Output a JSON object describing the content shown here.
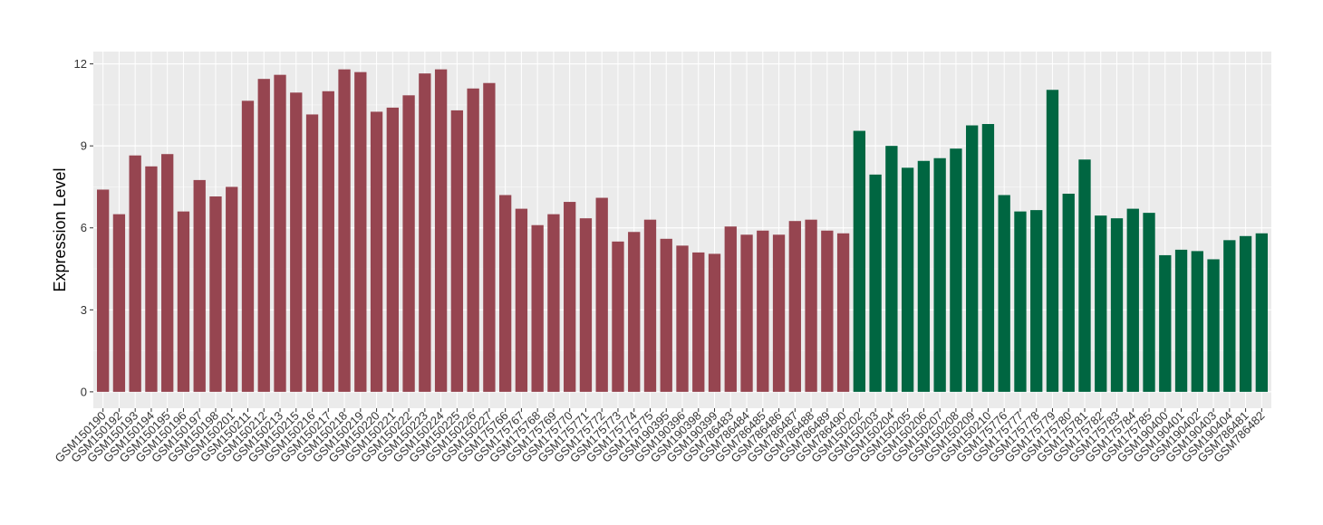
{
  "chart_data": {
    "type": "bar",
    "title": "",
    "xlabel": "",
    "ylabel": "Expression Level",
    "ylim": [
      -0.6,
      12.45
    ],
    "yticks": [
      0,
      3,
      6,
      9,
      12
    ],
    "grid": true,
    "colors": {
      "group1": "#964550",
      "group2": "#006641",
      "panel": "#ebebeb",
      "gridline": "#ffffff"
    },
    "categories": [
      "GSM150190",
      "GSM150192",
      "GSM150193",
      "GSM150194",
      "GSM150195",
      "GSM150196",
      "GSM150197",
      "GSM150198",
      "GSM150201",
      "GSM150211",
      "GSM150212",
      "GSM150213",
      "GSM150215",
      "GSM150216",
      "GSM150217",
      "GSM150218",
      "GSM150219",
      "GSM150220",
      "GSM150221",
      "GSM150222",
      "GSM150223",
      "GSM150224",
      "GSM150225",
      "GSM150226",
      "GSM150227",
      "GSM175766",
      "GSM175767",
      "GSM175768",
      "GSM175769",
      "GSM175770",
      "GSM175771",
      "GSM175772",
      "GSM175773",
      "GSM175774",
      "GSM175775",
      "GSM190395",
      "GSM190396",
      "GSM190398",
      "GSM190399",
      "GSM786483",
      "GSM786484",
      "GSM786485",
      "GSM786486",
      "GSM786487",
      "GSM786488",
      "GSM786489",
      "GSM786490",
      "GSM150202",
      "GSM150203",
      "GSM150204",
      "GSM150205",
      "GSM150206",
      "GSM150207",
      "GSM150208",
      "GSM150209",
      "GSM150210",
      "GSM175776",
      "GSM175777",
      "GSM175778",
      "GSM175779",
      "GSM175780",
      "GSM175781",
      "GSM175782",
      "GSM175783",
      "GSM175784",
      "GSM175785",
      "GSM190400",
      "GSM190401",
      "GSM190402",
      "GSM190403",
      "GSM190404",
      "GSM786481",
      "GSM786482"
    ],
    "values": [
      7.4,
      6.5,
      8.65,
      8.25,
      8.7,
      6.6,
      7.75,
      7.15,
      7.5,
      10.65,
      11.45,
      11.6,
      10.95,
      10.15,
      11.0,
      11.8,
      11.7,
      10.25,
      10.4,
      10.85,
      11.65,
      11.8,
      10.3,
      11.1,
      11.3,
      7.2,
      6.7,
      6.1,
      6.5,
      6.95,
      6.35,
      7.1,
      5.5,
      5.85,
      6.3,
      5.6,
      5.35,
      5.1,
      5.05,
      6.05,
      5.75,
      5.9,
      5.75,
      6.25,
      6.3,
      5.9,
      5.8,
      9.55,
      7.95,
      9.0,
      8.2,
      8.45,
      8.55,
      8.9,
      9.75,
      9.8,
      7.2,
      6.6,
      6.65,
      11.05,
      7.25,
      8.5,
      6.45,
      6.35,
      6.7,
      6.55,
      5.0,
      5.2,
      5.15,
      4.85,
      5.55,
      5.7,
      5.8
    ],
    "group_split_index": 47
  }
}
